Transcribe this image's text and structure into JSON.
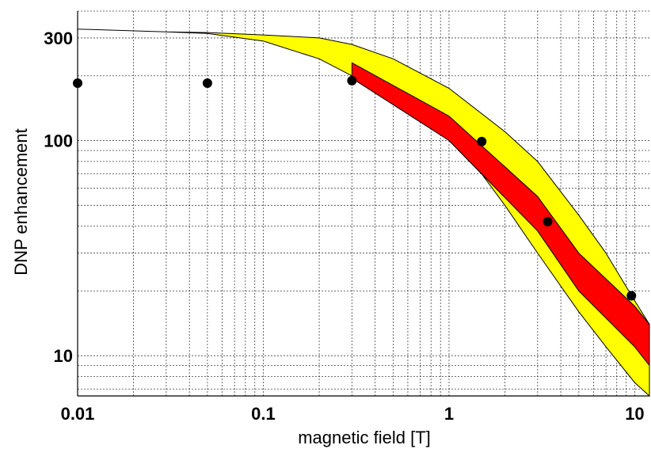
{
  "chart_data": {
    "type": "area",
    "title": "",
    "xlabel": "magnetic field [T]",
    "ylabel": "DNP enhancement",
    "x_scale": "log",
    "y_scale": "log",
    "xlim": [
      0.01,
      12
    ],
    "ylim": [
      6.5,
      400
    ],
    "x_ticks": [
      {
        "value": 0.01,
        "label": "0.01"
      },
      {
        "value": 0.1,
        "label": "0.1"
      },
      {
        "value": 1,
        "label": "1"
      },
      {
        "value": 10,
        "label": "10"
      }
    ],
    "y_ticks": [
      {
        "value": 10,
        "label": "10"
      },
      {
        "value": 100,
        "label": "100"
      },
      {
        "value": 300,
        "label": "300"
      }
    ],
    "grid": true,
    "colors": {
      "yellow_band": "#ffff00",
      "red_band": "#ff0000",
      "points": "#000000"
    },
    "series": [
      {
        "kind": "band",
        "color": "yellow",
        "upper": {
          "x": [
            0.01,
            0.03,
            0.05,
            0.1,
            0.2,
            0.3,
            0.5,
            1,
            2,
            3,
            5,
            7,
            10,
            12
          ],
          "y": [
            330,
            320,
            318,
            310,
            300,
            280,
            240,
            175,
            110,
            80,
            45,
            30,
            18,
            14
          ]
        },
        "lower": {
          "x": [
            0.01,
            0.03,
            0.05,
            0.1,
            0.2,
            0.3,
            0.5,
            1,
            1.5,
            2,
            3,
            5,
            7,
            10,
            12
          ],
          "y": [
            330,
            320,
            315,
            290,
            240,
            200,
            160,
            100,
            70,
            50,
            30,
            16,
            11,
            7.5,
            6.5
          ]
        }
      },
      {
        "kind": "band",
        "color": "red",
        "upper": {
          "x": [
            0.3,
            1.0,
            3.0,
            5.0,
            10,
            12
          ],
          "y": [
            230,
            130,
            55,
            30,
            17,
            14
          ]
        },
        "lower": {
          "x": [
            0.3,
            1.0,
            3.0,
            5.0,
            10,
            12
          ],
          "y": [
            195,
            100,
            38,
            20,
            11,
            9
          ]
        }
      },
      {
        "kind": "points",
        "color": "black",
        "x": [
          0.01,
          0.05,
          0.3,
          1.5,
          3.4,
          9.6
        ],
        "y": [
          185,
          185,
          190,
          99,
          42,
          19
        ]
      }
    ]
  }
}
